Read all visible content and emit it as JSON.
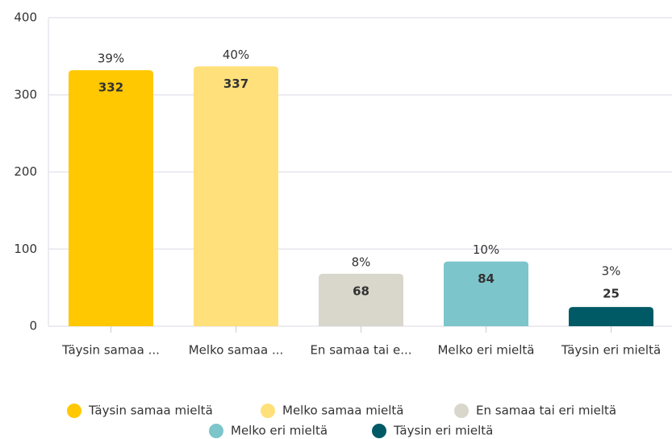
{
  "chart_data": {
    "type": "bar",
    "categories": [
      "Täysin samaa ...",
      "Melko samaa ...",
      "En samaa tai e...",
      "Melko eri mieltä",
      "Täysin eri mieltä"
    ],
    "values": [
      332,
      337,
      68,
      84,
      25
    ],
    "percentages": [
      39,
      40,
      8,
      10,
      3
    ],
    "percentage_labels": [
      "39%",
      "40%",
      "8%",
      "10%",
      "3%"
    ],
    "colors": [
      "#ffc800",
      "#ffe07a",
      "#d9d6cc",
      "#7cc5cb",
      "#005a66"
    ],
    "legend": [
      "Täysin samaa mieltä",
      "Melko samaa mieltä",
      "En samaa tai eri mieltä",
      "Melko eri mieltä",
      "Täysin eri mieltä"
    ],
    "ylim": [
      0,
      400
    ],
    "yticks": [
      0,
      100,
      200,
      300,
      400
    ],
    "grid": true,
    "legend_position": "bottom"
  }
}
